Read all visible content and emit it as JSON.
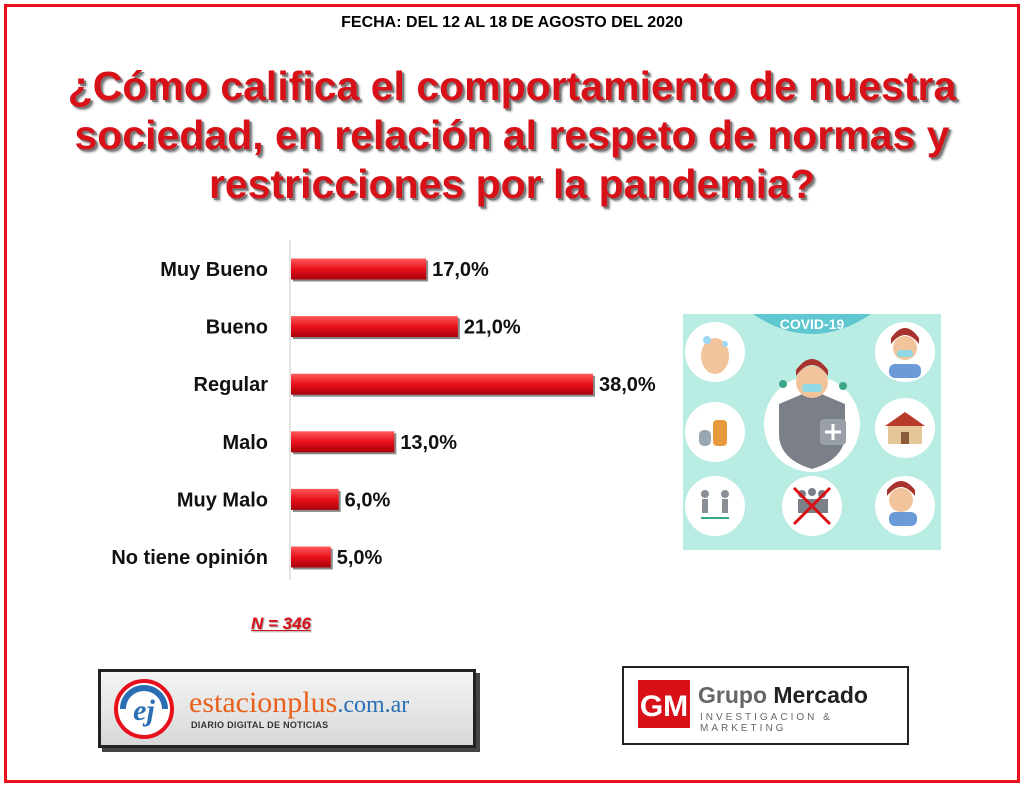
{
  "header": {
    "date": "FECHA: DEL 12 AL 18 DE AGOSTO DEL 2020",
    "title": "¿Cómo califica el comportamiento de nuestra sociedad, en relación al respeto de normas y restricciones por la pandemia?"
  },
  "chart_data": {
    "type": "bar",
    "orientation": "horizontal",
    "categories": [
      "Muy Bueno",
      "Bueno",
      "Regular",
      "Malo",
      "Muy Malo",
      "No tiene opinión"
    ],
    "values": [
      17.0,
      21.0,
      38.0,
      13.0,
      6.0,
      5.0
    ],
    "value_labels": [
      "17,0%",
      "21,0%",
      "38,0%",
      "13,0%",
      "6,0%",
      "5,0%"
    ],
    "xlim": [
      0,
      38
    ],
    "grid": false,
    "bar_color": "#e8111b"
  },
  "sample": "N = 346",
  "illustration": {
    "label": "COVID-19",
    "icons": [
      "hand-washing-icon",
      "masked-woman-icon",
      "cleaning-spray-icon",
      "masked-man-shield-icon",
      "house-icon",
      "social-distance-icon",
      "no-crowds-icon",
      "sneeze-icon"
    ]
  },
  "logos": {
    "left": {
      "name": "estacionplus",
      "tld": ".com.ar",
      "subtitle": "DIARIO DIGITAL DE NOTICIAS"
    },
    "right": {
      "mark": "GM",
      "name_light": "Grupo",
      "name_bold": "Mercado",
      "subtitle": "INVESTIGACION & MARKETING"
    }
  },
  "colors": {
    "accent": "#e8111b",
    "title": "#d81118",
    "panel": "#b9ece2"
  }
}
